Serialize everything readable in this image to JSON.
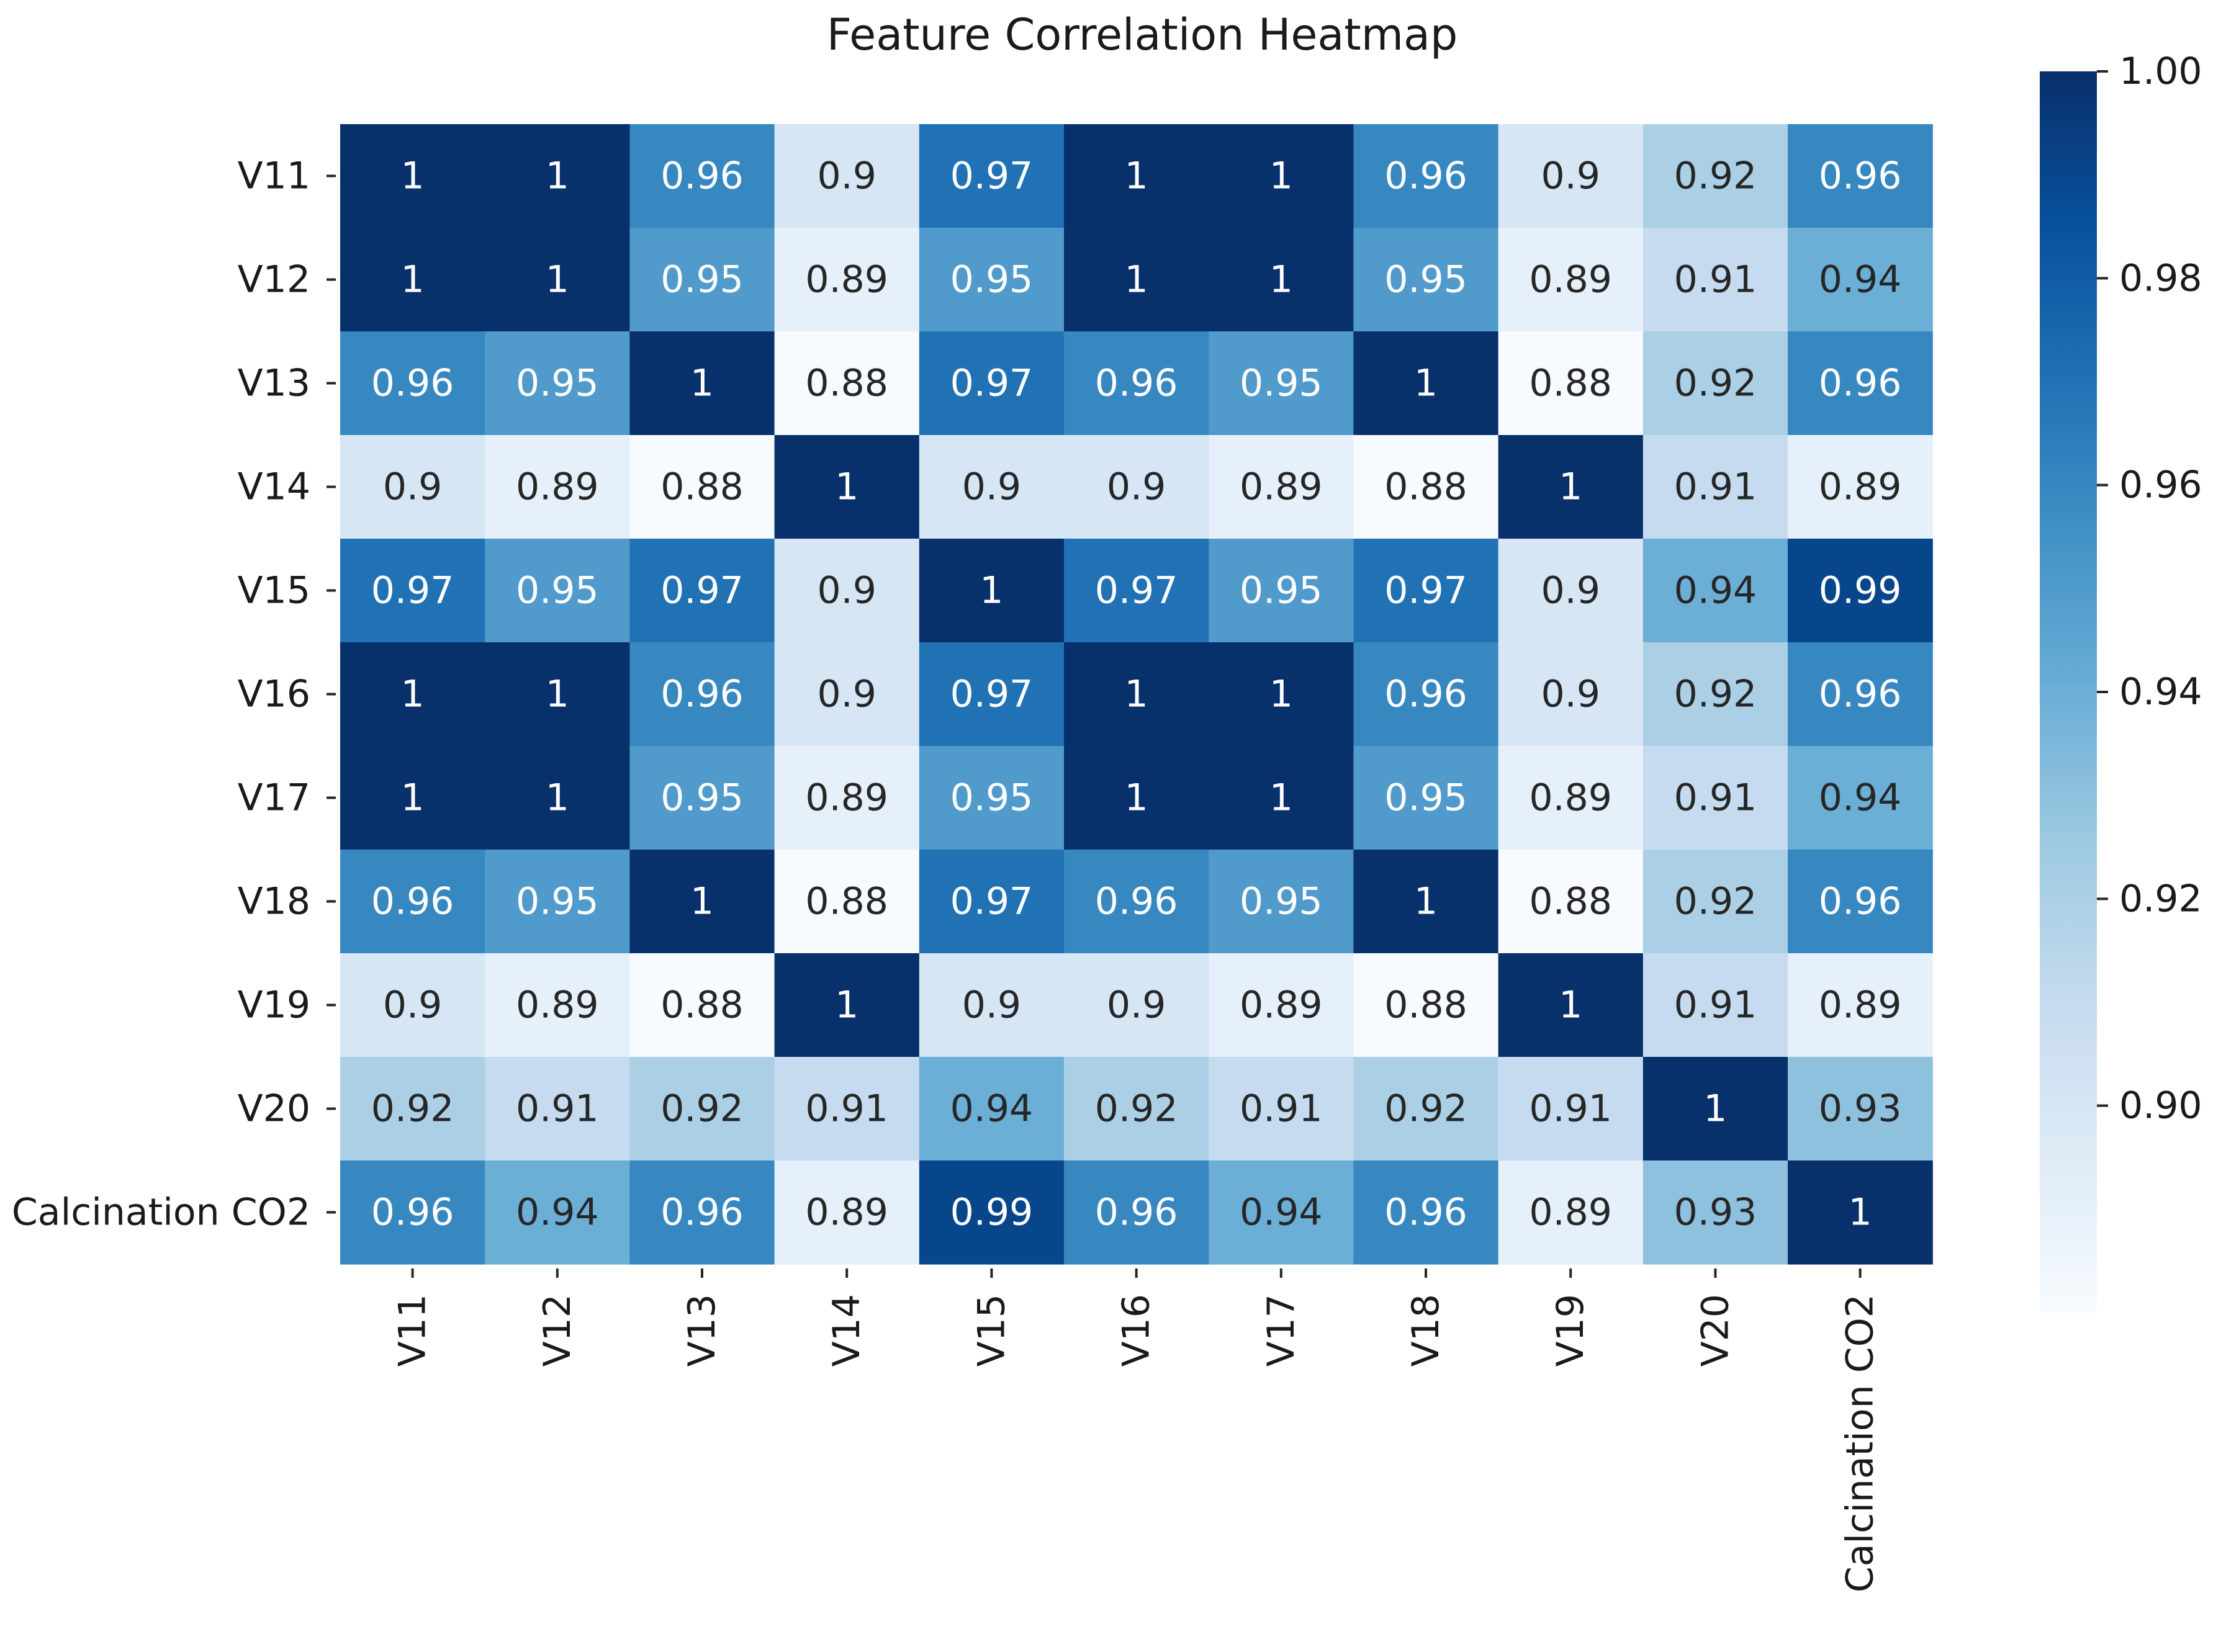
{
  "chart_data": {
    "type": "heatmap",
    "title": "Feature Correlation Heatmap",
    "labels": [
      "V11",
      "V12",
      "V13",
      "V14",
      "V15",
      "V16",
      "V17",
      "V18",
      "V19",
      "V20",
      "Calcination CO2"
    ],
    "matrix": [
      [
        1,
        1,
        0.96,
        0.9,
        0.97,
        1,
        1,
        0.96,
        0.9,
        0.92,
        0.96
      ],
      [
        1,
        1,
        0.95,
        0.89,
        0.95,
        1,
        1,
        0.95,
        0.89,
        0.91,
        0.94
      ],
      [
        0.96,
        0.95,
        1,
        0.88,
        0.97,
        0.96,
        0.95,
        1,
        0.88,
        0.92,
        0.96
      ],
      [
        0.9,
        0.89,
        0.88,
        1,
        0.9,
        0.9,
        0.89,
        0.88,
        1,
        0.91,
        0.89
      ],
      [
        0.97,
        0.95,
        0.97,
        0.9,
        1,
        0.97,
        0.95,
        0.97,
        0.9,
        0.94,
        0.99
      ],
      [
        1,
        1,
        0.96,
        0.9,
        0.97,
        1,
        1,
        0.96,
        0.9,
        0.92,
        0.96
      ],
      [
        1,
        1,
        0.95,
        0.89,
        0.95,
        1,
        1,
        0.95,
        0.89,
        0.91,
        0.94
      ],
      [
        0.96,
        0.95,
        1,
        0.88,
        0.97,
        0.96,
        0.95,
        1,
        0.88,
        0.92,
        0.96
      ],
      [
        0.9,
        0.89,
        0.88,
        1,
        0.9,
        0.9,
        0.89,
        0.88,
        1,
        0.91,
        0.89
      ],
      [
        0.92,
        0.91,
        0.92,
        0.91,
        0.94,
        0.92,
        0.91,
        0.92,
        0.91,
        1,
        0.93
      ],
      [
        0.96,
        0.94,
        0.96,
        0.89,
        0.99,
        0.96,
        0.94,
        0.96,
        0.89,
        0.93,
        1
      ]
    ],
    "colormap": "Blues",
    "colorbar": {
      "vmin": 0.88,
      "vmax": 1.0,
      "ticks": [
        0.9,
        0.92,
        0.94,
        0.96,
        0.98,
        1.0
      ],
      "tick_labels": [
        "0.90",
        "0.92",
        "0.94",
        "0.96",
        "0.98",
        "1.00"
      ]
    }
  }
}
